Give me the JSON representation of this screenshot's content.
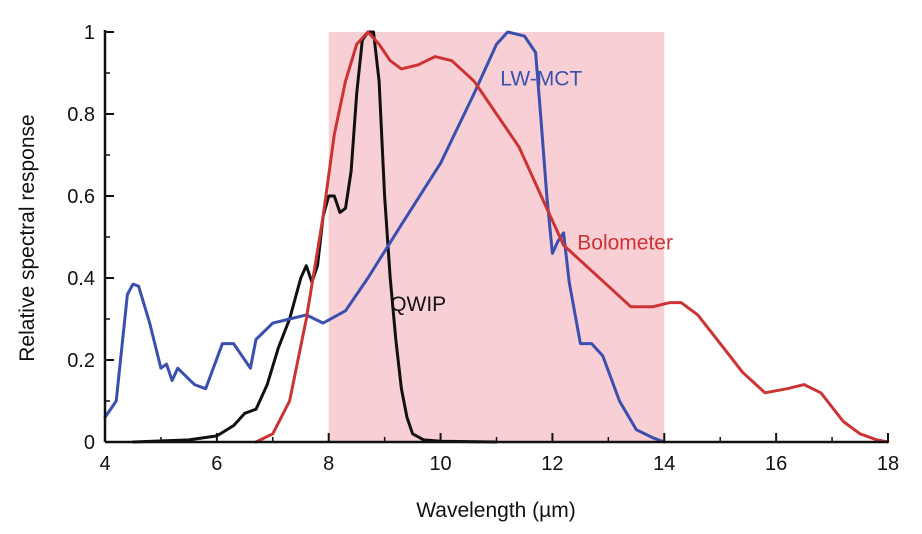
{
  "chart_data": {
    "type": "line",
    "title": "",
    "xlabel": "Wavelength (µm)",
    "ylabel": "Relative spectral response",
    "xlim": [
      4,
      18
    ],
    "ylim": [
      0,
      1
    ],
    "x_ticks": [
      4,
      6,
      8,
      10,
      12,
      14,
      16,
      18
    ],
    "x_tick_labels": [
      "4",
      "6",
      "8",
      "10",
      "12",
      "14",
      "16",
      "18"
    ],
    "y_ticks": [
      0,
      0.2,
      0.4,
      0.6,
      0.8,
      1
    ],
    "y_tick_labels": [
      "0",
      "0.2",
      "0.4",
      "0.6",
      "0.8",
      "1"
    ],
    "grid": false,
    "shaded_band": {
      "x_range": [
        8,
        14
      ],
      "color": "#f9cfd6"
    },
    "series": [
      {
        "name": "QWIP",
        "color": "#111111",
        "points": [
          [
            4.5,
            0
          ],
          [
            5.5,
            0.005
          ],
          [
            6.0,
            0.015
          ],
          [
            6.3,
            0.04
          ],
          [
            6.5,
            0.07
          ],
          [
            6.7,
            0.08
          ],
          [
            6.9,
            0.14
          ],
          [
            7.1,
            0.23
          ],
          [
            7.3,
            0.3
          ],
          [
            7.5,
            0.4
          ],
          [
            7.6,
            0.43
          ],
          [
            7.7,
            0.39
          ],
          [
            7.8,
            0.43
          ],
          [
            7.9,
            0.55
          ],
          [
            8.0,
            0.6
          ],
          [
            8.1,
            0.6
          ],
          [
            8.2,
            0.56
          ],
          [
            8.3,
            0.57
          ],
          [
            8.4,
            0.66
          ],
          [
            8.5,
            0.85
          ],
          [
            8.6,
            0.98
          ],
          [
            8.7,
            1.0
          ],
          [
            8.8,
            1.0
          ],
          [
            8.9,
            0.88
          ],
          [
            9.0,
            0.6
          ],
          [
            9.1,
            0.4
          ],
          [
            9.2,
            0.25
          ],
          [
            9.3,
            0.13
          ],
          [
            9.4,
            0.06
          ],
          [
            9.5,
            0.02
          ],
          [
            9.7,
            0.005
          ],
          [
            10.0,
            0.002
          ],
          [
            11.0,
            0
          ]
        ],
        "label_position_data": [
          9.6,
          0.32
        ]
      },
      {
        "name": "LW-MCT",
        "color": "#3a4fae",
        "points": [
          [
            4.0,
            0.06
          ],
          [
            4.2,
            0.1
          ],
          [
            4.4,
            0.36
          ],
          [
            4.5,
            0.385
          ],
          [
            4.6,
            0.38
          ],
          [
            4.8,
            0.29
          ],
          [
            5.0,
            0.18
          ],
          [
            5.1,
            0.19
          ],
          [
            5.2,
            0.15
          ],
          [
            5.3,
            0.18
          ],
          [
            5.6,
            0.14
          ],
          [
            5.8,
            0.13
          ],
          [
            6.1,
            0.24
          ],
          [
            6.3,
            0.24
          ],
          [
            6.6,
            0.18
          ],
          [
            6.7,
            0.25
          ],
          [
            7.0,
            0.29
          ],
          [
            7.3,
            0.3
          ],
          [
            7.6,
            0.31
          ],
          [
            7.9,
            0.29
          ],
          [
            8.3,
            0.32
          ],
          [
            8.7,
            0.4
          ],
          [
            9.3,
            0.53
          ],
          [
            10.0,
            0.68
          ],
          [
            10.6,
            0.85
          ],
          [
            11.0,
            0.97
          ],
          [
            11.2,
            1.0
          ],
          [
            11.5,
            0.99
          ],
          [
            11.7,
            0.95
          ],
          [
            11.8,
            0.78
          ],
          [
            11.9,
            0.6
          ],
          [
            12.0,
            0.46
          ],
          [
            12.1,
            0.49
          ],
          [
            12.2,
            0.51
          ],
          [
            12.3,
            0.39
          ],
          [
            12.5,
            0.24
          ],
          [
            12.7,
            0.24
          ],
          [
            12.9,
            0.21
          ],
          [
            13.2,
            0.1
          ],
          [
            13.5,
            0.03
          ],
          [
            13.8,
            0.01
          ],
          [
            14.0,
            0
          ]
        ],
        "label_position_data": [
          11.8,
          0.87
        ]
      },
      {
        "name": "Bolometer",
        "color": "#cc3333",
        "points": [
          [
            6.7,
            0
          ],
          [
            7.0,
            0.02
          ],
          [
            7.3,
            0.1
          ],
          [
            7.6,
            0.3
          ],
          [
            7.9,
            0.55
          ],
          [
            8.1,
            0.75
          ],
          [
            8.3,
            0.88
          ],
          [
            8.5,
            0.97
          ],
          [
            8.7,
            1.0
          ],
          [
            8.9,
            0.97
          ],
          [
            9.1,
            0.93
          ],
          [
            9.3,
            0.91
          ],
          [
            9.6,
            0.92
          ],
          [
            9.9,
            0.94
          ],
          [
            10.2,
            0.93
          ],
          [
            10.6,
            0.88
          ],
          [
            11.0,
            0.8
          ],
          [
            11.4,
            0.72
          ],
          [
            11.8,
            0.6
          ],
          [
            12.2,
            0.48
          ],
          [
            12.6,
            0.43
          ],
          [
            13.0,
            0.38
          ],
          [
            13.4,
            0.33
          ],
          [
            13.8,
            0.33
          ],
          [
            14.1,
            0.34
          ],
          [
            14.3,
            0.34
          ],
          [
            14.6,
            0.31
          ],
          [
            15.0,
            0.24
          ],
          [
            15.4,
            0.17
          ],
          [
            15.8,
            0.12
          ],
          [
            16.2,
            0.13
          ],
          [
            16.5,
            0.14
          ],
          [
            16.8,
            0.12
          ],
          [
            17.2,
            0.05
          ],
          [
            17.5,
            0.02
          ],
          [
            17.8,
            0.005
          ],
          [
            18.0,
            0
          ]
        ],
        "label_position_data": [
          13.3,
          0.47
        ]
      }
    ]
  }
}
